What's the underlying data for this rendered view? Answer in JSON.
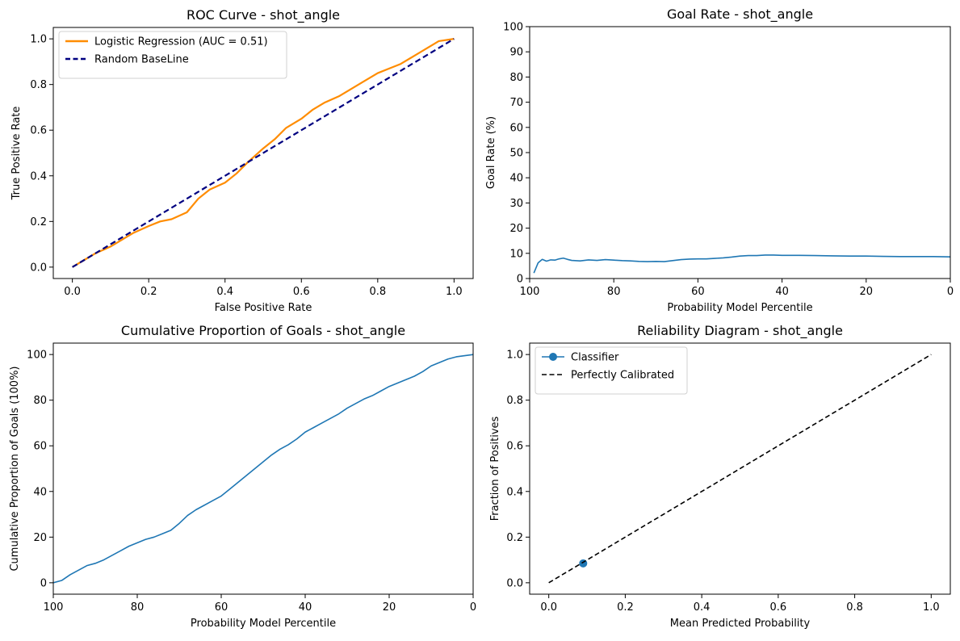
{
  "chart_data": [
    {
      "type": "line",
      "title": "ROC Curve - shot_angle",
      "xlabel": "False Positive Rate",
      "ylabel": "True Positive Rate",
      "xlim": [
        -0.05,
        1.05
      ],
      "ylim": [
        -0.05,
        1.05
      ],
      "xticks": [
        "0.0",
        "0.2",
        "0.4",
        "0.6",
        "0.8",
        "1.0"
      ],
      "yticks": [
        "0.0",
        "0.2",
        "0.4",
        "0.6",
        "0.8",
        "1.0"
      ],
      "legend_position": "top-left",
      "series": [
        {
          "name": "Logistic Regression (AUC = 0.51)",
          "color": "#ff8c00",
          "style": "solid",
          "x": [
            0.0,
            0.03,
            0.06,
            0.1,
            0.13,
            0.16,
            0.2,
            0.23,
            0.26,
            0.3,
            0.33,
            0.36,
            0.4,
            0.43,
            0.46,
            0.5,
            0.53,
            0.56,
            0.6,
            0.63,
            0.66,
            0.7,
            0.73,
            0.76,
            0.8,
            0.83,
            0.86,
            0.9,
            0.93,
            0.96,
            1.0
          ],
          "y": [
            0.0,
            0.03,
            0.06,
            0.09,
            0.12,
            0.15,
            0.18,
            0.2,
            0.21,
            0.24,
            0.3,
            0.34,
            0.37,
            0.41,
            0.46,
            0.52,
            0.56,
            0.61,
            0.65,
            0.69,
            0.72,
            0.75,
            0.78,
            0.81,
            0.85,
            0.87,
            0.89,
            0.93,
            0.96,
            0.99,
            1.0
          ]
        },
        {
          "name": "Random BaseLine",
          "color": "#000080",
          "style": "dashed",
          "x": [
            0.0,
            1.0
          ],
          "y": [
            0.0,
            1.0
          ]
        }
      ]
    },
    {
      "type": "line",
      "title": "Goal Rate - shot_angle",
      "xlabel": "Probability Model Percentile",
      "ylabel": "Goal Rate (%)",
      "xlim": [
        100,
        0
      ],
      "ylim": [
        0,
        100
      ],
      "xticks": [
        "100",
        "80",
        "60",
        "40",
        "20",
        "0"
      ],
      "yticks": [
        "0",
        "10",
        "20",
        "30",
        "40",
        "50",
        "60",
        "70",
        "80",
        "90",
        "100"
      ],
      "series": [
        {
          "color": "#1f77b4",
          "x": [
            99,
            98,
            97,
            96,
            95,
            94,
            93,
            92,
            91,
            90,
            88,
            86,
            84,
            82,
            80,
            78,
            76,
            74,
            72,
            70,
            68,
            66,
            64,
            62,
            60,
            58,
            56,
            54,
            52,
            50,
            48,
            46,
            44,
            42,
            40,
            36,
            32,
            28,
            24,
            20,
            16,
            12,
            8,
            4,
            0
          ],
          "y": [
            2.2,
            6.2,
            7.6,
            6.9,
            7.4,
            7.3,
            7.8,
            8.1,
            7.6,
            7.2,
            7.0,
            7.4,
            7.2,
            7.5,
            7.3,
            7.1,
            7.0,
            6.8,
            6.7,
            6.8,
            6.7,
            7.1,
            7.5,
            7.7,
            7.8,
            7.8,
            8.0,
            8.2,
            8.5,
            8.9,
            9.1,
            9.1,
            9.3,
            9.3,
            9.2,
            9.2,
            9.1,
            9.0,
            8.9,
            8.9,
            8.8,
            8.7,
            8.7,
            8.7,
            8.6
          ]
        }
      ]
    },
    {
      "type": "line",
      "title": "Cumulative Proportion of Goals - shot_angle",
      "xlabel": "Probability Model Percentile",
      "ylabel": "Cumulative Proportion of Goals (100%)",
      "xlim": [
        100,
        0
      ],
      "ylim": [
        -5,
        105
      ],
      "xticks": [
        "100",
        "80",
        "60",
        "40",
        "20",
        "0"
      ],
      "yticks": [
        "0",
        "20",
        "40",
        "60",
        "80",
        "100"
      ],
      "series": [
        {
          "color": "#1f77b4",
          "x": [
            100,
            98,
            96,
            94,
            92,
            90,
            88,
            86,
            84,
            82,
            80,
            78,
            76,
            74,
            72,
            70,
            68,
            66,
            64,
            62,
            60,
            58,
            56,
            54,
            52,
            50,
            48,
            46,
            44,
            42,
            40,
            38,
            36,
            34,
            32,
            30,
            28,
            26,
            24,
            22,
            20,
            18,
            16,
            14,
            12,
            10,
            8,
            6,
            4,
            2,
            0
          ],
          "y": [
            0,
            1,
            3.5,
            5.5,
            7.5,
            8.5,
            10,
            12,
            14,
            16,
            17.5,
            19,
            20,
            21.5,
            23,
            26,
            29.5,
            32,
            34,
            36,
            38,
            41,
            44,
            47,
            50,
            53,
            56,
            58.5,
            60.5,
            63,
            66,
            68,
            70,
            72,
            74,
            76.5,
            78.5,
            80.5,
            82,
            84,
            86,
            87.5,
            89,
            90.5,
            92.5,
            95,
            96.5,
            98,
            99,
            99.5,
            100
          ]
        }
      ]
    },
    {
      "type": "scatter",
      "title": "Reliability Diagram - shot_angle",
      "xlabel": "Mean Predicted Probability",
      "ylabel": "Fraction of Positives",
      "xlim": [
        -0.05,
        1.05
      ],
      "ylim": [
        -0.05,
        1.05
      ],
      "xticks": [
        "0.0",
        "0.2",
        "0.4",
        "0.6",
        "0.8",
        "1.0"
      ],
      "yticks": [
        "0.0",
        "0.2",
        "0.4",
        "0.6",
        "0.8",
        "1.0"
      ],
      "legend_position": "top-left",
      "series": [
        {
          "name": "Classifier",
          "color": "#1f77b4",
          "style": "solid-marker",
          "x": [
            0.09
          ],
          "y": [
            0.085
          ]
        },
        {
          "name": "Perfectly Calibrated",
          "color": "#000000",
          "style": "dashed",
          "x": [
            0.0,
            1.0
          ],
          "y": [
            0.0,
            1.0
          ]
        }
      ]
    }
  ]
}
